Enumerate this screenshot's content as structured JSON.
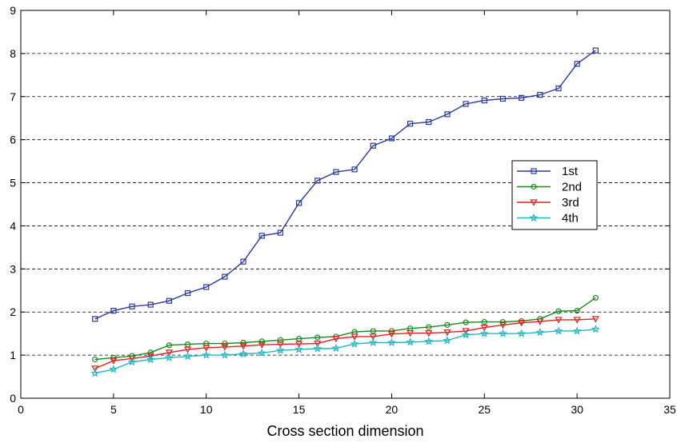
{
  "chart_data": {
    "type": "line",
    "title": "",
    "xlabel": "Cross section dimension",
    "ylabel": "",
    "xlim": [
      0,
      35
    ],
    "ylim": [
      0,
      9
    ],
    "xticks": [
      0,
      5,
      10,
      15,
      20,
      25,
      30,
      35
    ],
    "yticks": [
      0,
      1,
      2,
      3,
      4,
      5,
      6,
      7,
      8,
      9
    ],
    "grid": "horizontal dashed",
    "legend_position": "right",
    "x": [
      4,
      5,
      6,
      7,
      8,
      9,
      10,
      11,
      12,
      13,
      14,
      15,
      16,
      17,
      18,
      19,
      20,
      21,
      22,
      23,
      24,
      25,
      26,
      27,
      28,
      29,
      30,
      31
    ],
    "series": [
      {
        "name": "1st",
        "color": "#2b3a9c",
        "marker": "square",
        "values": [
          1.84,
          2.03,
          2.13,
          2.17,
          2.26,
          2.44,
          2.58,
          2.82,
          3.17,
          3.77,
          3.84,
          4.53,
          5.05,
          5.25,
          5.31,
          5.86,
          6.03,
          6.37,
          6.41,
          6.59,
          6.83,
          6.91,
          6.95,
          6.97,
          7.04,
          7.19,
          7.76,
          8.07
        ]
      },
      {
        "name": "2nd",
        "color": "#1a8a1a",
        "marker": "circle",
        "values": [
          0.9,
          0.94,
          0.98,
          1.06,
          1.23,
          1.25,
          1.27,
          1.27,
          1.29,
          1.32,
          1.35,
          1.38,
          1.41,
          1.43,
          1.54,
          1.56,
          1.56,
          1.62,
          1.65,
          1.7,
          1.76,
          1.77,
          1.77,
          1.79,
          1.84,
          2.02,
          2.03,
          2.33
        ]
      },
      {
        "name": "3rd",
        "color": "#e02020",
        "marker": "triangle-down",
        "values": [
          0.69,
          0.87,
          0.92,
          0.98,
          1.06,
          1.13,
          1.17,
          1.19,
          1.21,
          1.24,
          1.25,
          1.26,
          1.27,
          1.38,
          1.43,
          1.43,
          1.49,
          1.51,
          1.51,
          1.53,
          1.56,
          1.64,
          1.7,
          1.75,
          1.78,
          1.82,
          1.82,
          1.84
        ]
      },
      {
        "name": "4th",
        "color": "#22b8c0",
        "marker": "star",
        "values": [
          0.58,
          0.67,
          0.84,
          0.9,
          0.94,
          0.97,
          1.0,
          1.0,
          1.03,
          1.05,
          1.11,
          1.13,
          1.15,
          1.16,
          1.26,
          1.29,
          1.29,
          1.3,
          1.32,
          1.34,
          1.47,
          1.5,
          1.5,
          1.5,
          1.53,
          1.56,
          1.56,
          1.6
        ]
      }
    ]
  }
}
